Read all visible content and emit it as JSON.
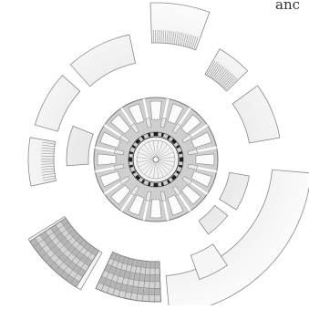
{
  "caption_fragment": "anc",
  "colors": {
    "segment_fill": "#ededed",
    "segment_stroke": "#8a8a8a",
    "disc_fill": "#cfcfcf",
    "inner_fill": "#f2f2f2",
    "dark_mark": "#1f1f1f",
    "hatch": "#8d8d8d"
  }
}
